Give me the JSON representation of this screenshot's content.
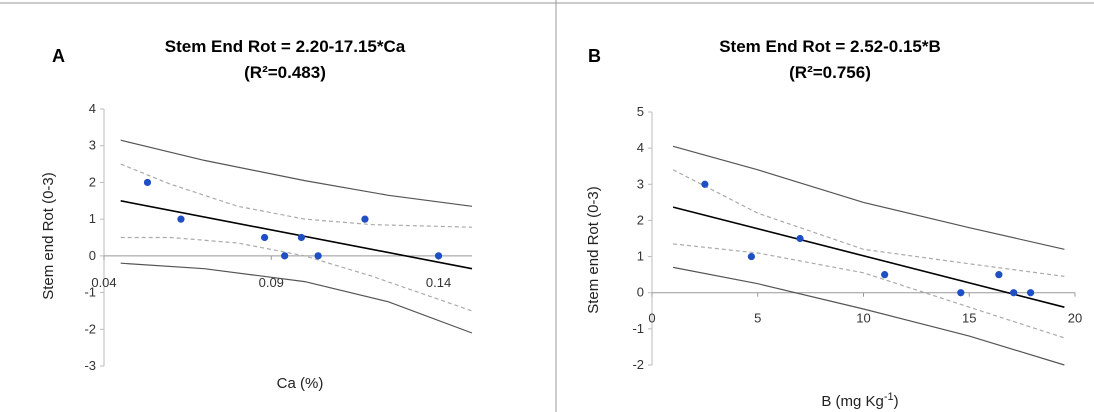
{
  "chart_data": [
    {
      "type": "scatter",
      "panel_label": "A",
      "title": "Stem End Rot = 2.20-17.15*Ca",
      "subtitle": "(R²=0.483)",
      "xlabel": "Ca (%)",
      "ylabel": "Stem end Rot (0-3)",
      "xlim": [
        0.04,
        0.15
      ],
      "ylim": [
        -3,
        4
      ],
      "xticks": [
        "0.04",
        "0.09",
        "0.14"
      ],
      "xtick_values": [
        0.04,
        0.09,
        0.14
      ],
      "yticks": [
        "-3",
        "-2",
        "-1",
        "0",
        "1",
        "2",
        "3",
        "4"
      ],
      "ytick_values": [
        -3,
        -2,
        -1,
        0,
        1,
        2,
        3,
        4
      ],
      "points": [
        {
          "x": 0.053,
          "y": 2.0
        },
        {
          "x": 0.063,
          "y": 1.0
        },
        {
          "x": 0.088,
          "y": 0.5
        },
        {
          "x": 0.094,
          "y": 0.0
        },
        {
          "x": 0.099,
          "y": 0.5
        },
        {
          "x": 0.104,
          "y": 0.0
        },
        {
          "x": 0.118,
          "y": 1.0
        },
        {
          "x": 0.14,
          "y": 0.0
        }
      ],
      "regression_line": [
        [
          0.045,
          1.5
        ],
        [
          0.15,
          -0.35
        ]
      ],
      "confidence_band": {
        "upper": [
          [
            0.045,
            2.5
          ],
          [
            0.06,
            1.95
          ],
          [
            0.08,
            1.35
          ],
          [
            0.1,
            1.0
          ],
          [
            0.12,
            0.85
          ],
          [
            0.15,
            0.78
          ]
        ],
        "lower": [
          [
            0.045,
            0.5
          ],
          [
            0.06,
            0.5
          ],
          [
            0.08,
            0.35
          ],
          [
            0.1,
            0.0
          ],
          [
            0.12,
            -0.55
          ],
          [
            0.15,
            -1.5
          ]
        ]
      },
      "prediction_band": {
        "upper": [
          [
            0.045,
            3.15
          ],
          [
            0.07,
            2.6
          ],
          [
            0.1,
            2.05
          ],
          [
            0.125,
            1.65
          ],
          [
            0.15,
            1.35
          ]
        ],
        "lower": [
          [
            0.045,
            -0.2
          ],
          [
            0.07,
            -0.35
          ],
          [
            0.1,
            -0.7
          ],
          [
            0.125,
            -1.25
          ],
          [
            0.15,
            -2.1
          ]
        ]
      },
      "colors": {
        "points": "#1f4fc4",
        "line": "#000000",
        "band": "#555555",
        "conf": "#aaaaaa"
      }
    },
    {
      "type": "scatter",
      "panel_label": "B",
      "title": "Stem End Rot = 2.52-0.15*B",
      "subtitle": "(R²=0.756)",
      "xlabel": "B (mg Kg-1)",
      "xlabel_parts": {
        "main": "B (mg Kg",
        "sup": "-1",
        "end": ")"
      },
      "ylabel": "Stem end Rot (0-3)",
      "xlim": [
        0,
        20
      ],
      "ylim": [
        -2,
        5
      ],
      "xticks": [
        "0",
        "5",
        "10",
        "15",
        "20"
      ],
      "xtick_values": [
        0,
        5,
        10,
        15,
        20
      ],
      "yticks": [
        "-2",
        "-1",
        "0",
        "1",
        "2",
        "3",
        "4",
        "5"
      ],
      "ytick_values": [
        -2,
        -1,
        0,
        1,
        2,
        3,
        4,
        5
      ],
      "points": [
        {
          "x": 2.5,
          "y": 3.0
        },
        {
          "x": 4.7,
          "y": 1.0
        },
        {
          "x": 7.0,
          "y": 1.5
        },
        {
          "x": 11.0,
          "y": 0.5
        },
        {
          "x": 14.6,
          "y": 0.0
        },
        {
          "x": 16.4,
          "y": 0.5
        },
        {
          "x": 17.1,
          "y": 0.0
        },
        {
          "x": 17.9,
          "y": 0.0
        }
      ],
      "regression_line": [
        [
          1.0,
          2.37
        ],
        [
          19.5,
          -0.4
        ]
      ],
      "confidence_band": {
        "upper": [
          [
            1.0,
            3.4
          ],
          [
            5.0,
            2.2
          ],
          [
            10.0,
            1.2
          ],
          [
            15.0,
            0.8
          ],
          [
            19.5,
            0.45
          ]
        ],
        "lower": [
          [
            1.0,
            1.35
          ],
          [
            5.0,
            1.1
          ],
          [
            10.0,
            0.55
          ],
          [
            15.0,
            -0.4
          ],
          [
            19.5,
            -1.25
          ]
        ]
      },
      "prediction_band": {
        "upper": [
          [
            1.0,
            4.05
          ],
          [
            5.0,
            3.4
          ],
          [
            10.0,
            2.5
          ],
          [
            15.0,
            1.8
          ],
          [
            19.5,
            1.2
          ]
        ],
        "lower": [
          [
            1.0,
            0.7
          ],
          [
            5.0,
            0.25
          ],
          [
            10.0,
            -0.45
          ],
          [
            15.0,
            -1.2
          ],
          [
            19.5,
            -2.0
          ]
        ]
      },
      "colors": {
        "points": "#1f4fc4",
        "line": "#000000",
        "band": "#555555",
        "conf": "#aaaaaa"
      }
    }
  ]
}
